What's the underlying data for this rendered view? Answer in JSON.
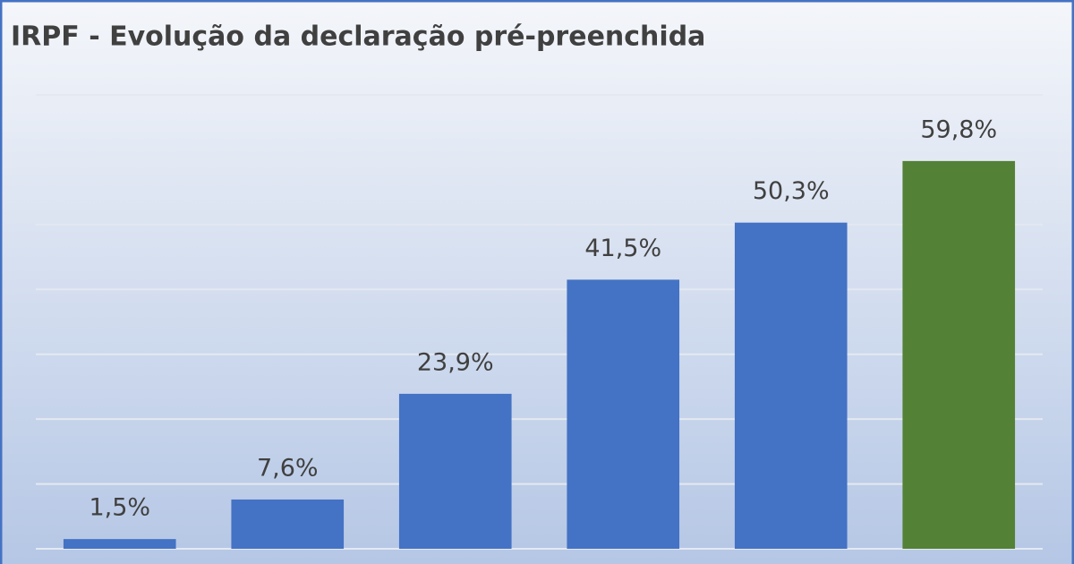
{
  "chart_data": {
    "type": "bar",
    "title": "IRPF - Evolução da declaração pré-preenchida",
    "categories": [
      null,
      null,
      null,
      null,
      null,
      null
    ],
    "values": [
      1.5,
      7.6,
      23.9,
      41.5,
      50.3,
      59.8
    ],
    "value_labels": [
      "1,5%",
      "7,6%",
      "23,9%",
      "41,5%",
      "50,3%",
      "59,8%"
    ],
    "colors": [
      "#4472c4",
      "#4472c4",
      "#4472c4",
      "#4472c4",
      "#4472c4",
      "#538135"
    ],
    "ylim": [
      0,
      70
    ],
    "yticks": [
      0,
      10,
      20,
      30,
      40,
      50,
      60,
      70
    ],
    "ytick_labels": false,
    "grid": true
  }
}
